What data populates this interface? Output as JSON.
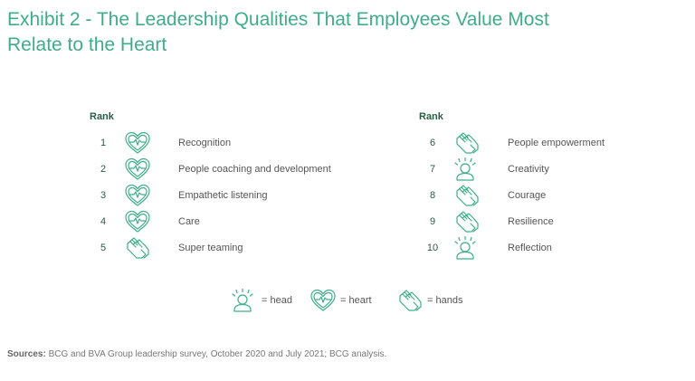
{
  "title": {
    "line1": "Exhibit 2 - The Leadership Qualities That Employees Value Most",
    "line2": "Relate to the Heart"
  },
  "rank_header": "Rank",
  "left_items": [
    {
      "rank": "1",
      "label": "Recognition",
      "icon": "heart-icon"
    },
    {
      "rank": "2",
      "label": "People coaching and development",
      "icon": "heart-icon"
    },
    {
      "rank": "3",
      "label": "Empathetic listening",
      "icon": "heart-icon"
    },
    {
      "rank": "4",
      "label": "Care",
      "icon": "heart-icon"
    },
    {
      "rank": "5",
      "label": "Super teaming",
      "icon": "hands-icon"
    }
  ],
  "right_items": [
    {
      "rank": "6",
      "label": "People empowerment",
      "icon": "hands-icon"
    },
    {
      "rank": "7",
      "label": "Creativity",
      "icon": "head-icon"
    },
    {
      "rank": "8",
      "label": "Courage",
      "icon": "hands-icon"
    },
    {
      "rank": "9",
      "label": "Resilience",
      "icon": "hands-icon"
    },
    {
      "rank": "10",
      "label": "Reflection",
      "icon": "head-icon"
    }
  ],
  "legend": [
    {
      "icon": "head-icon",
      "label": "= head"
    },
    {
      "icon": "heart-icon",
      "label": "= heart"
    },
    {
      "icon": "hands-icon",
      "label": "= hands"
    }
  ],
  "sources": {
    "prefix": "Sources:",
    "text": " BCG and BVA Group leadership survey, October 2020 and July 2021; BCG analysis."
  },
  "colors": {
    "accent": "#3fad8a",
    "rank_text": "#2a5d45",
    "body_text": "#555555"
  }
}
